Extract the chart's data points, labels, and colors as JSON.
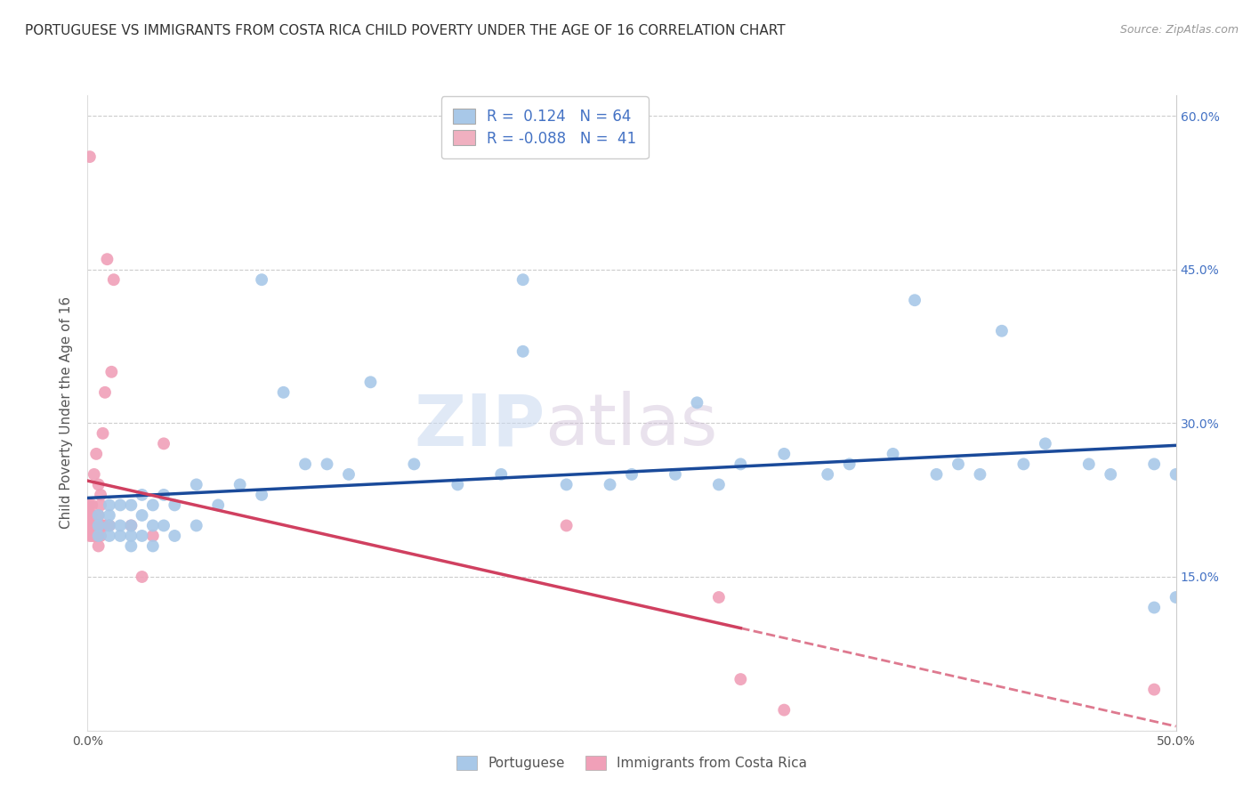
{
  "title": "PORTUGUESE VS IMMIGRANTS FROM COSTA RICA CHILD POVERTY UNDER THE AGE OF 16 CORRELATION CHART",
  "source": "Source: ZipAtlas.com",
  "ylabel": "Child Poverty Under the Age of 16",
  "xlim": [
    0.0,
    0.5
  ],
  "ylim": [
    0.0,
    0.62
  ],
  "xticks": [
    0.0,
    0.1,
    0.2,
    0.3,
    0.4,
    0.5
  ],
  "xticklabels": [
    "0.0%",
    "",
    "",
    "",
    "",
    "50.0%"
  ],
  "yticks": [
    0.0,
    0.15,
    0.3,
    0.45,
    0.6
  ],
  "yticklabels": [
    "",
    "",
    "",
    "",
    ""
  ],
  "right_yticks": [
    0.15,
    0.3,
    0.45,
    0.6
  ],
  "right_yticklabels": [
    "15.0%",
    "30.0%",
    "45.0%",
    "60.0%"
  ],
  "blue_color": "#a8c8e8",
  "pink_color": "#f0a0b8",
  "blue_line_color": "#1a4a9a",
  "pink_line_color": "#d04060",
  "legend_blue_color": "#a8c8e8",
  "legend_pink_color": "#f0b0c0",
  "R_blue": 0.124,
  "N_blue": 64,
  "R_pink": -0.088,
  "N_pink": 41,
  "watermark_zip": "ZIP",
  "watermark_atlas": "atlas",
  "blue_scatter_x": [
    0.005,
    0.005,
    0.005,
    0.01,
    0.01,
    0.01,
    0.01,
    0.015,
    0.015,
    0.015,
    0.02,
    0.02,
    0.02,
    0.02,
    0.025,
    0.025,
    0.025,
    0.03,
    0.03,
    0.03,
    0.035,
    0.035,
    0.04,
    0.04,
    0.05,
    0.05,
    0.06,
    0.07,
    0.08,
    0.09,
    0.1,
    0.11,
    0.12,
    0.13,
    0.15,
    0.17,
    0.19,
    0.2,
    0.22,
    0.24,
    0.25,
    0.27,
    0.29,
    0.3,
    0.32,
    0.34,
    0.35,
    0.37,
    0.39,
    0.4,
    0.41,
    0.43,
    0.44,
    0.46,
    0.47,
    0.49,
    0.49,
    0.5,
    0.5,
    0.42,
    0.38,
    0.28,
    0.2,
    0.08
  ],
  "blue_scatter_y": [
    0.2,
    0.21,
    0.19,
    0.19,
    0.2,
    0.21,
    0.22,
    0.19,
    0.2,
    0.22,
    0.18,
    0.19,
    0.2,
    0.22,
    0.19,
    0.21,
    0.23,
    0.18,
    0.2,
    0.22,
    0.2,
    0.23,
    0.19,
    0.22,
    0.2,
    0.24,
    0.22,
    0.24,
    0.23,
    0.33,
    0.26,
    0.26,
    0.25,
    0.34,
    0.26,
    0.24,
    0.25,
    0.37,
    0.24,
    0.24,
    0.25,
    0.25,
    0.24,
    0.26,
    0.27,
    0.25,
    0.26,
    0.27,
    0.25,
    0.26,
    0.25,
    0.26,
    0.28,
    0.26,
    0.25,
    0.26,
    0.12,
    0.13,
    0.25,
    0.39,
    0.42,
    0.32,
    0.44,
    0.44
  ],
  "pink_scatter_x": [
    0.001,
    0.001,
    0.001,
    0.001,
    0.001,
    0.002,
    0.002,
    0.002,
    0.002,
    0.003,
    0.003,
    0.003,
    0.004,
    0.004,
    0.004,
    0.005,
    0.005,
    0.005,
    0.005,
    0.005,
    0.006,
    0.006,
    0.006,
    0.006,
    0.007,
    0.007,
    0.008,
    0.008,
    0.009,
    0.01,
    0.011,
    0.012,
    0.02,
    0.025,
    0.03,
    0.035,
    0.22,
    0.29,
    0.3,
    0.32,
    0.49
  ],
  "pink_scatter_y": [
    0.19,
    0.2,
    0.21,
    0.22,
    0.56,
    0.19,
    0.2,
    0.21,
    0.22,
    0.19,
    0.2,
    0.25,
    0.19,
    0.2,
    0.27,
    0.18,
    0.19,
    0.2,
    0.21,
    0.24,
    0.19,
    0.2,
    0.22,
    0.23,
    0.2,
    0.29,
    0.2,
    0.33,
    0.46,
    0.2,
    0.35,
    0.44,
    0.2,
    0.15,
    0.19,
    0.28,
    0.2,
    0.13,
    0.05,
    0.02,
    0.04
  ],
  "background_color": "#ffffff",
  "grid_color": "#cccccc",
  "title_fontsize": 11,
  "axis_label_fontsize": 11,
  "tick_fontsize": 10,
  "dot_size": 100
}
